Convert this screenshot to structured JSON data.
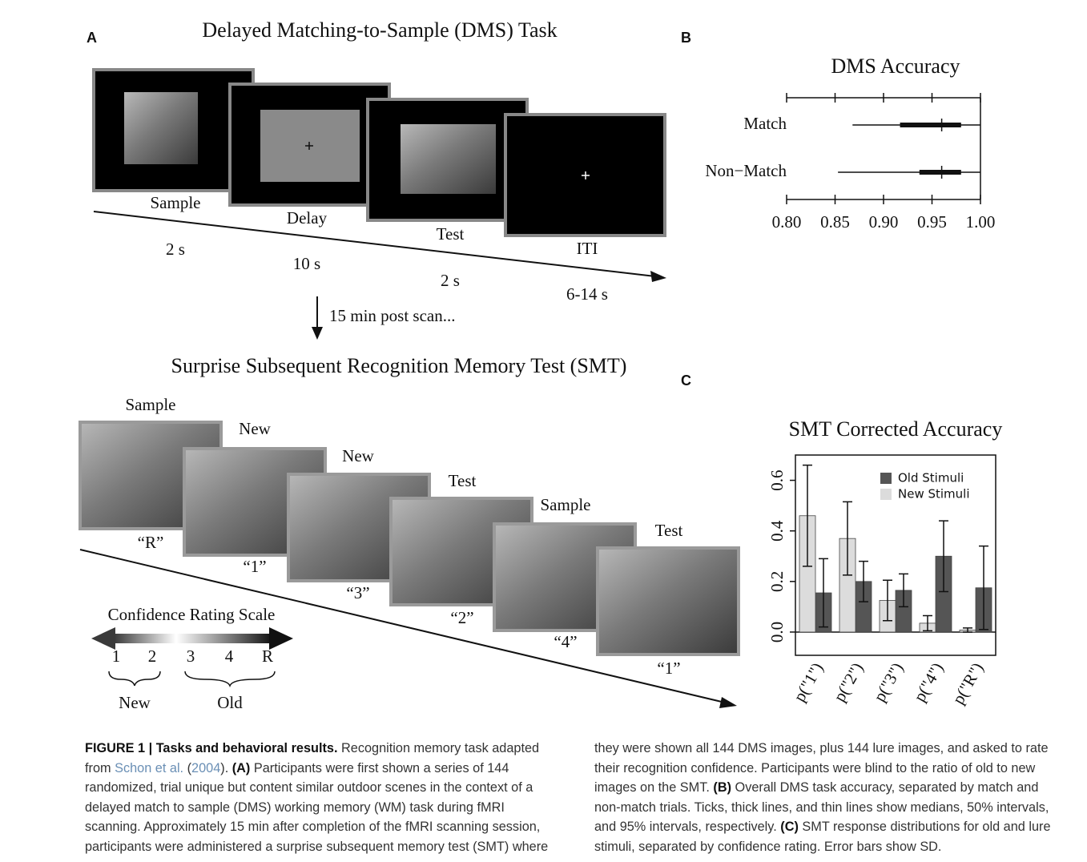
{
  "panel_a": {
    "label": "A",
    "title": "Delayed Matching-to-Sample (DMS) Task",
    "screens": [
      {
        "label": "Sample",
        "duration": "2 s"
      },
      {
        "label": "Delay",
        "duration": "10 s"
      },
      {
        "label": "Test",
        "duration": "2 s"
      },
      {
        "label": "ITI",
        "duration": "6-14 s"
      }
    ],
    "transition": "15 min post scan...",
    "smt_title": "Surprise Subsequent Recognition Memory Test (SMT)",
    "images": [
      {
        "label": "Sample",
        "response": "“R”"
      },
      {
        "label": "New",
        "response": "“1”"
      },
      {
        "label": "New",
        "response": "“3”"
      },
      {
        "label": "Test",
        "response": "“2”"
      },
      {
        "label": "Sample",
        "response": "“4”"
      },
      {
        "label": "Test",
        "response": "“1”"
      }
    ],
    "scale": {
      "title": "Confidence Rating Scale",
      "ratings": [
        "1",
        "2",
        "3",
        "4",
        "R"
      ],
      "groups": [
        "New",
        "Old"
      ]
    }
  },
  "chart_data": [
    {
      "type": "interval",
      "panel": "B",
      "title": "DMS Accuracy",
      "categories": [
        "Match",
        "Non−Match"
      ],
      "median": [
        0.96,
        0.96
      ],
      "interval_50": [
        [
          0.917,
          0.98
        ],
        [
          0.937,
          0.98
        ]
      ],
      "interval_95": [
        [
          0.868,
          1.0
        ],
        [
          0.853,
          1.0
        ]
      ],
      "xlim": [
        0.8,
        1.0
      ],
      "xticks": [
        {
          "value": 0.8,
          "label": "0.80"
        },
        0.85,
        {
          "value": 0.9,
          "label": "0.90"
        },
        0.95,
        {
          "value": 1.0,
          "label": "1.00"
        }
      ]
    },
    {
      "type": "bar",
      "panel": "C",
      "title": "SMT Corrected Accuracy",
      "categories": [
        "p(\"1\")",
        "p(\"2\")",
        "p(\"3\")",
        "p(\"4\")",
        "p(\"R\")"
      ],
      "series": [
        {
          "name": "Old Stimuli",
          "color": "#555555",
          "values": [
            0.155,
            0.2,
            0.165,
            0.3,
            0.175
          ],
          "errors": [
            0.135,
            0.08,
            0.065,
            0.14,
            0.165
          ]
        },
        {
          "name": "New Stimuli",
          "color": "#dcdcdc",
          "values": [
            0.46,
            0.37,
            0.125,
            0.035,
            0.008
          ],
          "errors": [
            0.2,
            0.145,
            0.08,
            0.03,
            0.008
          ]
        }
      ],
      "ylim": [
        -0.092,
        0.7
      ],
      "yticks": [
        {
          "value": 0,
          "label": "0.0"
        },
        0.2,
        0.4,
        0.6
      ]
    }
  ],
  "caption": [
    {
      "kind": "bold",
      "text": "FIGURE 1 | Tasks and behavioral results."
    },
    {
      "kind": "plain",
      "text": " Recognition memory task adapted from "
    },
    {
      "kind": "link",
      "text": "Schon et al."
    },
    {
      "kind": "plain",
      "text": " ("
    },
    {
      "kind": "link",
      "text": "2004"
    },
    {
      "kind": "plain",
      "text": "). "
    },
    {
      "kind": "bold",
      "text": "(A)"
    },
    {
      "kind": "plain",
      "text": " Participants were first shown a series of 144 randomized, trial unique but content similar outdoor scenes in the context of a delayed match to sample (DMS) working memory (WM) task during fMRI scanning. Approximately 15 min after completion of the fMRI scanning session, participants were administered a surprise subsequent memory test (SMT) where they were shown all 144 DMS images, plus 144 lure images, and asked to rate their recognition confidence. Participants were blind to the ratio of old to new images on the SMT. "
    },
    {
      "kind": "bold",
      "text": "(B)"
    },
    {
      "kind": "plain",
      "text": " Overall DMS task accuracy, separated by match and non-match trials. Ticks, thick lines, and thin lines show medians, 50% intervals, and 95% intervals, respectively. "
    },
    {
      "kind": "bold",
      "text": "(C)"
    },
    {
      "kind": "plain",
      "text": " SMT response distributions for old and lure stimuli, separated by confidence rating. Error bars show SD."
    }
  ]
}
